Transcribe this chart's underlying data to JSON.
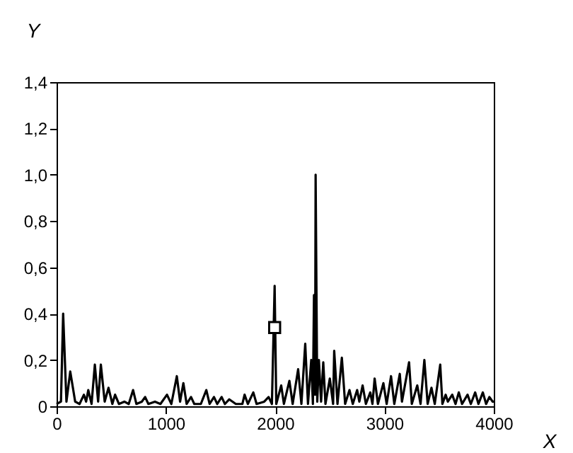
{
  "chart_data": {
    "type": "line",
    "xlabel": "X",
    "ylabel": "Y",
    "xlim": [
      0,
      4000
    ],
    "ylim": [
      0,
      1.4
    ],
    "xticks": [
      0,
      1000,
      2000,
      3000,
      4000
    ],
    "yticks": [
      0,
      {
        "value": 0.2,
        "label": "0,2"
      },
      {
        "value": 0.4,
        "label": "0,4"
      },
      {
        "value": 0.6,
        "label": "0,6"
      },
      {
        "value": 0.8,
        "label": "0,8"
      },
      {
        "value": 1.0,
        "label": "1,0"
      },
      {
        "value": 1.2,
        "label": "1,2"
      },
      {
        "value": 1.4,
        "label": "1,4"
      }
    ],
    "grid": false,
    "series": [
      {
        "type": "line",
        "color": "#000000",
        "marker": "none",
        "line_style": "solid",
        "x": [
          0,
          40,
          60,
          90,
          125,
          170,
          210,
          250,
          270,
          290,
          320,
          350,
          380,
          405,
          440,
          475,
          510,
          535,
          570,
          620,
          660,
          700,
          730,
          780,
          810,
          840,
          900,
          950,
          1010,
          1050,
          1100,
          1130,
          1160,
          1190,
          1230,
          1260,
          1320,
          1370,
          1400,
          1440,
          1470,
          1510,
          1540,
          1580,
          1640,
          1700,
          1720,
          1750,
          1800,
          1830,
          1900,
          1940,
          1970,
          1995,
          2010,
          2055,
          2080,
          2130,
          2160,
          2210,
          2240,
          2275,
          2300,
          2330,
          2345,
          2355,
          2365,
          2370,
          2385,
          2400,
          2420,
          2440,
          2460,
          2500,
          2530,
          2540,
          2570,
          2610,
          2640,
          2680,
          2710,
          2750,
          2770,
          2800,
          2830,
          2870,
          2890,
          2910,
          2940,
          2990,
          3020,
          3060,
          3090,
          3140,
          3160,
          3225,
          3250,
          3300,
          3330,
          3365,
          3395,
          3430,
          3460,
          3510,
          3530,
          3560,
          3580,
          3620,
          3650,
          3680,
          3710,
          3760,
          3790,
          3830,
          3860,
          3900,
          3930,
          3960,
          3990,
          4000
        ],
        "values": [
          0.01,
          0.02,
          0.4,
          0.02,
          0.15,
          0.02,
          0.01,
          0.05,
          0.02,
          0.07,
          0.01,
          0.18,
          0.02,
          0.18,
          0.02,
          0.08,
          0.01,
          0.05,
          0.01,
          0.02,
          0.01,
          0.07,
          0.01,
          0.02,
          0.04,
          0.01,
          0.02,
          0.01,
          0.05,
          0.01,
          0.13,
          0.02,
          0.1,
          0.01,
          0.04,
          0.01,
          0.01,
          0.07,
          0.01,
          0.04,
          0.01,
          0.04,
          0.01,
          0.03,
          0.01,
          0.01,
          0.05,
          0.01,
          0.06,
          0.01,
          0.02,
          0.04,
          0.01,
          0.52,
          0.01,
          0.09,
          0.01,
          0.11,
          0.01,
          0.16,
          0.01,
          0.27,
          0.01,
          0.2,
          0.01,
          0.48,
          0.05,
          1.0,
          0.02,
          0.2,
          0.02,
          0.19,
          0.01,
          0.12,
          0.01,
          0.24,
          0.01,
          0.21,
          0.01,
          0.07,
          0.01,
          0.07,
          0.02,
          0.09,
          0.01,
          0.06,
          0.01,
          0.12,
          0.01,
          0.1,
          0.01,
          0.13,
          0.01,
          0.14,
          0.02,
          0.19,
          0.01,
          0.09,
          0.01,
          0.2,
          0.01,
          0.08,
          0.01,
          0.18,
          0.01,
          0.05,
          0.02,
          0.05,
          0.01,
          0.06,
          0.01,
          0.05,
          0.01,
          0.06,
          0.01,
          0.06,
          0.01,
          0.04,
          0.02,
          0.02
        ]
      },
      {
        "type": "scatter",
        "color": "#000000",
        "marker": "square",
        "x": [
          1995
        ],
        "values": [
          0.34
        ]
      }
    ]
  }
}
